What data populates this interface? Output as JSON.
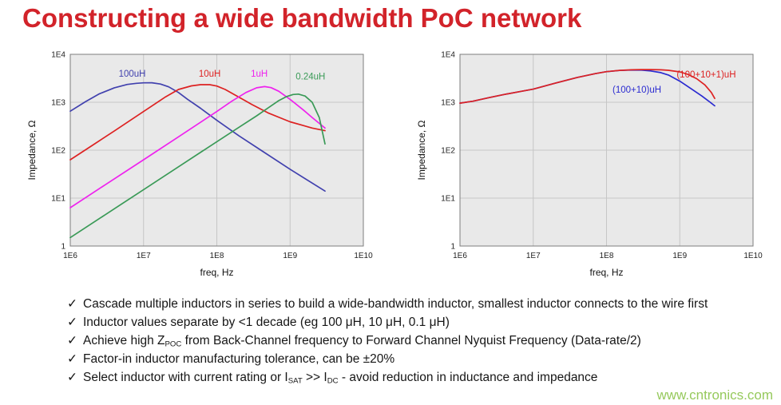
{
  "title": "Constructing a wide bandwidth PoC network",
  "watermark": "www.cntronics.com",
  "bullet_marker": "✓",
  "bullets": [
    {
      "parts": [
        {
          "text": "Cascade multiple inductors in series to build a wide-bandwidth inductor, smallest inductor connects to the wire first"
        }
      ]
    },
    {
      "parts": [
        {
          "text": "Inductor values separate by <1 decade (eg 100 μH, 10 μH, 0.1 μH)"
        }
      ]
    },
    {
      "parts": [
        {
          "text": "Achieve high Z"
        },
        {
          "text": "POC",
          "sub": true
        },
        {
          "text": " from Back-Channel frequency to Forward Channel Nyquist Frequency (Data-rate/2)"
        }
      ]
    },
    {
      "parts": [
        {
          "text": "Factor-in inductor manufacturing tolerance, can be ±20%"
        }
      ]
    },
    {
      "parts": [
        {
          "text": "Select inductor with current rating or I"
        },
        {
          "text": "SAT",
          "sub": true
        },
        {
          "text": " >> I"
        },
        {
          "text": "DC",
          "sub": true
        },
        {
          "text": " - avoid reduction in inductance and impedance"
        }
      ]
    }
  ],
  "colors": {
    "title": "#d2232a",
    "text": "#161616",
    "watermark": "#96c95c",
    "plot_bg": "#e9e9e9",
    "grid": "#c6c6c6",
    "border": "#7d7d7d",
    "tick_text": "#222222"
  },
  "chart_data": [
    {
      "type": "line",
      "title": "",
      "xlabel": "freq, Hz",
      "ylabel": "Impedance, Ω",
      "xscale": "log",
      "yscale": "log",
      "xlim": [
        1000000.0,
        10000000000.0
      ],
      "ylim": [
        1,
        10000
      ],
      "grid": true,
      "xticks": [
        [
          1000000.0,
          "1E6"
        ],
        [
          10000000.0,
          "1E7"
        ],
        [
          100000000.0,
          "1E8"
        ],
        [
          1000000000.0,
          "1E9"
        ],
        [
          10000000000.0,
          "1E10"
        ]
      ],
      "yticks": [
        [
          1,
          "1"
        ],
        [
          10,
          "1E1"
        ],
        [
          100,
          "1E2"
        ],
        [
          1000,
          "1E3"
        ],
        [
          10000,
          "1E4"
        ]
      ],
      "series": [
        {
          "name": "100uH",
          "color": "#4141ae",
          "label_at": [
            7000000.0,
            3400
          ],
          "x": [
            1000000.0,
            1600000.0,
            2500000.0,
            4000000.0,
            6000000.0,
            8000000.0,
            10000000.0,
            13000000.0,
            17000000.0,
            22000000.0,
            30000000.0,
            40000000.0,
            60000000.0,
            100000000.0,
            200000000.0,
            400000000.0,
            1000000000.0,
            3000000000.0
          ],
          "y": [
            650,
            1020,
            1500,
            2000,
            2350,
            2480,
            2540,
            2550,
            2400,
            2100,
            1600,
            1150,
            750,
            420,
            200,
            100,
            40,
            14
          ]
        },
        {
          "name": "10uH",
          "color": "#dd2222",
          "label_at": [
            80000000.0,
            3400
          ],
          "x": [
            1000000.0,
            2000000.0,
            4000000.0,
            10000000.0,
            20000000.0,
            30000000.0,
            45000000.0,
            60000000.0,
            80000000.0,
            100000000.0,
            130000000.0,
            180000000.0,
            300000000.0,
            500000000.0,
            1000000000.0,
            2000000000.0,
            3000000000.0
          ],
          "y": [
            63,
            126,
            252,
            640,
            1300,
            1850,
            2200,
            2330,
            2330,
            2180,
            1850,
            1400,
            900,
            600,
            390,
            290,
            255
          ]
        },
        {
          "name": "1uH",
          "color": "#ee22ee",
          "label_at": [
            380000000.0,
            3400
          ],
          "x": [
            1000000.0,
            3000000.0,
            10000000.0,
            30000000.0,
            100000000.0,
            160000000.0,
            250000000.0,
            350000000.0,
            450000000.0,
            550000000.0,
            700000000.0,
            1000000000.0,
            1500000000.0,
            2000000000.0,
            3000000000.0
          ],
          "y": [
            6.3,
            19,
            63,
            190,
            640,
            1050,
            1600,
            2000,
            2120,
            2020,
            1700,
            1150,
            700,
            480,
            290
          ]
        },
        {
          "name": "0.24uH",
          "color": "#3a9a57",
          "label_at": [
            1900000000.0,
            3000
          ],
          "x": [
            1000000.0,
            3000000.0,
            10000000.0,
            30000000.0,
            100000000.0,
            200000000.0,
            350000000.0,
            500000000.0,
            700000000.0,
            900000000.0,
            1100000000.0,
            1300000000.0,
            1600000000.0,
            2000000000.0,
            2500000000.0,
            3000000000.0
          ],
          "y": [
            1.5,
            4.5,
            15,
            45,
            150,
            300,
            520,
            760,
            1080,
            1320,
            1450,
            1480,
            1350,
            1000,
            480,
            135
          ]
        }
      ]
    },
    {
      "type": "line",
      "title": "",
      "xlabel": "freq, Hz",
      "ylabel": "Impedance, Ω",
      "xscale": "log",
      "yscale": "log",
      "xlim": [
        1000000.0,
        10000000000.0
      ],
      "ylim": [
        1,
        10000
      ],
      "grid": true,
      "xticks": [
        [
          1000000.0,
          "1E6"
        ],
        [
          10000000.0,
          "1E7"
        ],
        [
          100000000.0,
          "1E8"
        ],
        [
          1000000000.0,
          "1E9"
        ],
        [
          10000000000.0,
          "1E10"
        ]
      ],
      "yticks": [
        [
          1,
          "1"
        ],
        [
          10,
          "1E1"
        ],
        [
          100,
          "1E2"
        ],
        [
          1000,
          "1E3"
        ],
        [
          10000,
          "1E4"
        ]
      ],
      "series": [
        {
          "name": "(100+10)uH",
          "color": "#2a2ad0",
          "label_at": [
            260000000.0,
            1600
          ],
          "x": [
            1000000.0,
            1500000.0,
            2500000.0,
            4000000.0,
            7000000.0,
            10000000.0,
            20000000.0,
            40000000.0,
            70000000.0,
            100000000.0,
            150000000.0,
            220000000.0,
            300000000.0,
            400000000.0,
            550000000.0,
            700000000.0,
            1000000000.0,
            1400000000.0,
            2000000000.0,
            2600000000.0,
            3000000000.0
          ],
          "y": [
            960,
            1050,
            1250,
            1450,
            1700,
            1880,
            2500,
            3300,
            3950,
            4350,
            4600,
            4700,
            4680,
            4500,
            4150,
            3700,
            2750,
            1950,
            1350,
            1000,
            840
          ]
        },
        {
          "name": "(100+10+1)uH",
          "color": "#dd2222",
          "label_at": [
            2300000000.0,
            3300
          ],
          "x": [
            1000000.0,
            1500000.0,
            2500000.0,
            4000000.0,
            7000000.0,
            10000000.0,
            20000000.0,
            40000000.0,
            70000000.0,
            100000000.0,
            150000000.0,
            220000000.0,
            300000000.0,
            400000000.0,
            550000000.0,
            700000000.0,
            1000000000.0,
            1300000000.0,
            1700000000.0,
            2200000000.0,
            2700000000.0,
            3000000000.0
          ],
          "y": [
            960,
            1050,
            1250,
            1450,
            1700,
            1880,
            2500,
            3300,
            3950,
            4350,
            4620,
            4750,
            4800,
            4800,
            4750,
            4650,
            4300,
            3800,
            3100,
            2300,
            1600,
            1200
          ]
        }
      ]
    }
  ]
}
